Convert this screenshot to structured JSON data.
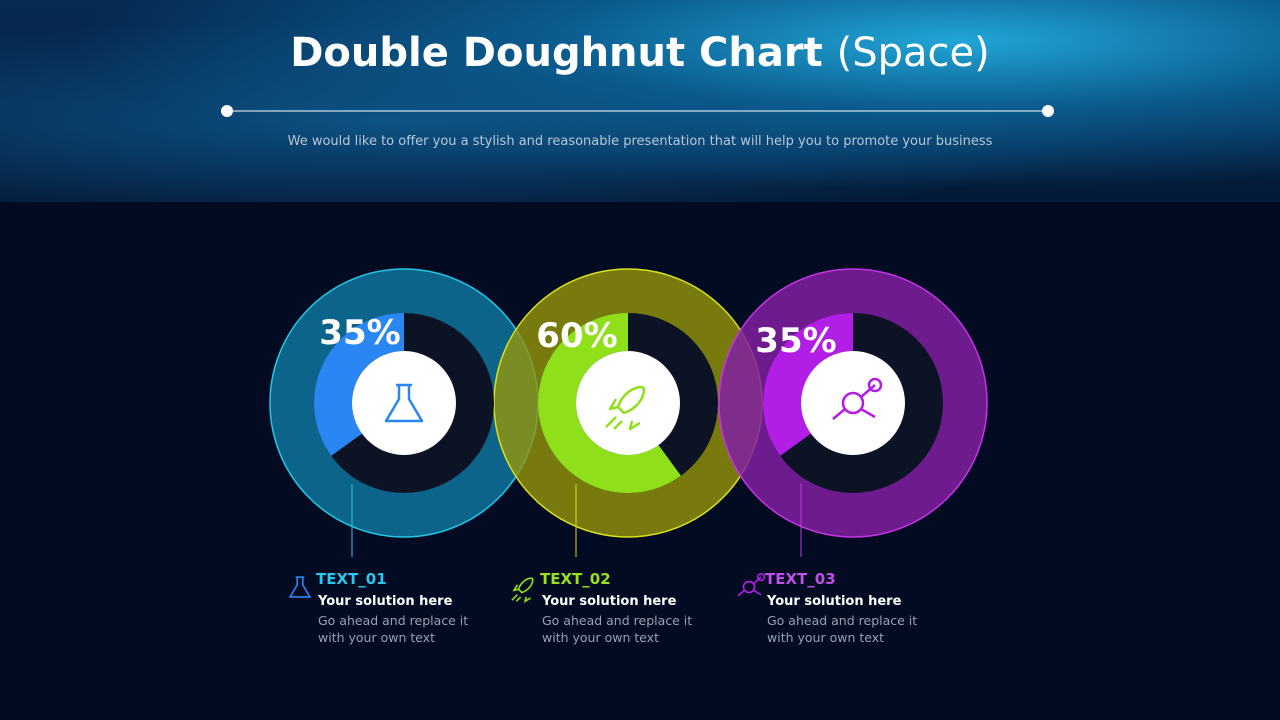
{
  "header": {
    "title": "Double Doughnut Chart",
    "title_suffix": "(Space)",
    "subtitle": "We would like to offer you a stylish and reasonable presentation that will help you to promote your business"
  },
  "chart_data": [
    {
      "type": "doughnut",
      "values": [
        35
      ],
      "value_labels": [
        "35%"
      ],
      "color": "#2a86f2"
    },
    {
      "type": "doughnut",
      "values": [
        60
      ],
      "value_labels": [
        "60%"
      ],
      "color": "#8fe01a"
    },
    {
      "type": "doughnut",
      "values": [
        35
      ],
      "value_labels": [
        "35%"
      ],
      "color": "#b21ee6"
    }
  ],
  "items": [
    {
      "label": "TEXT_01",
      "heading": "Your solution here",
      "body": "Go ahead and replace it with your own text"
    },
    {
      "label": "TEXT_02",
      "heading": "Your solution here",
      "body": "Go ahead and replace it with your own text"
    },
    {
      "label": "TEXT_03",
      "heading": "Your solution here",
      "body": "Go ahead and replace it with your own text"
    }
  ]
}
